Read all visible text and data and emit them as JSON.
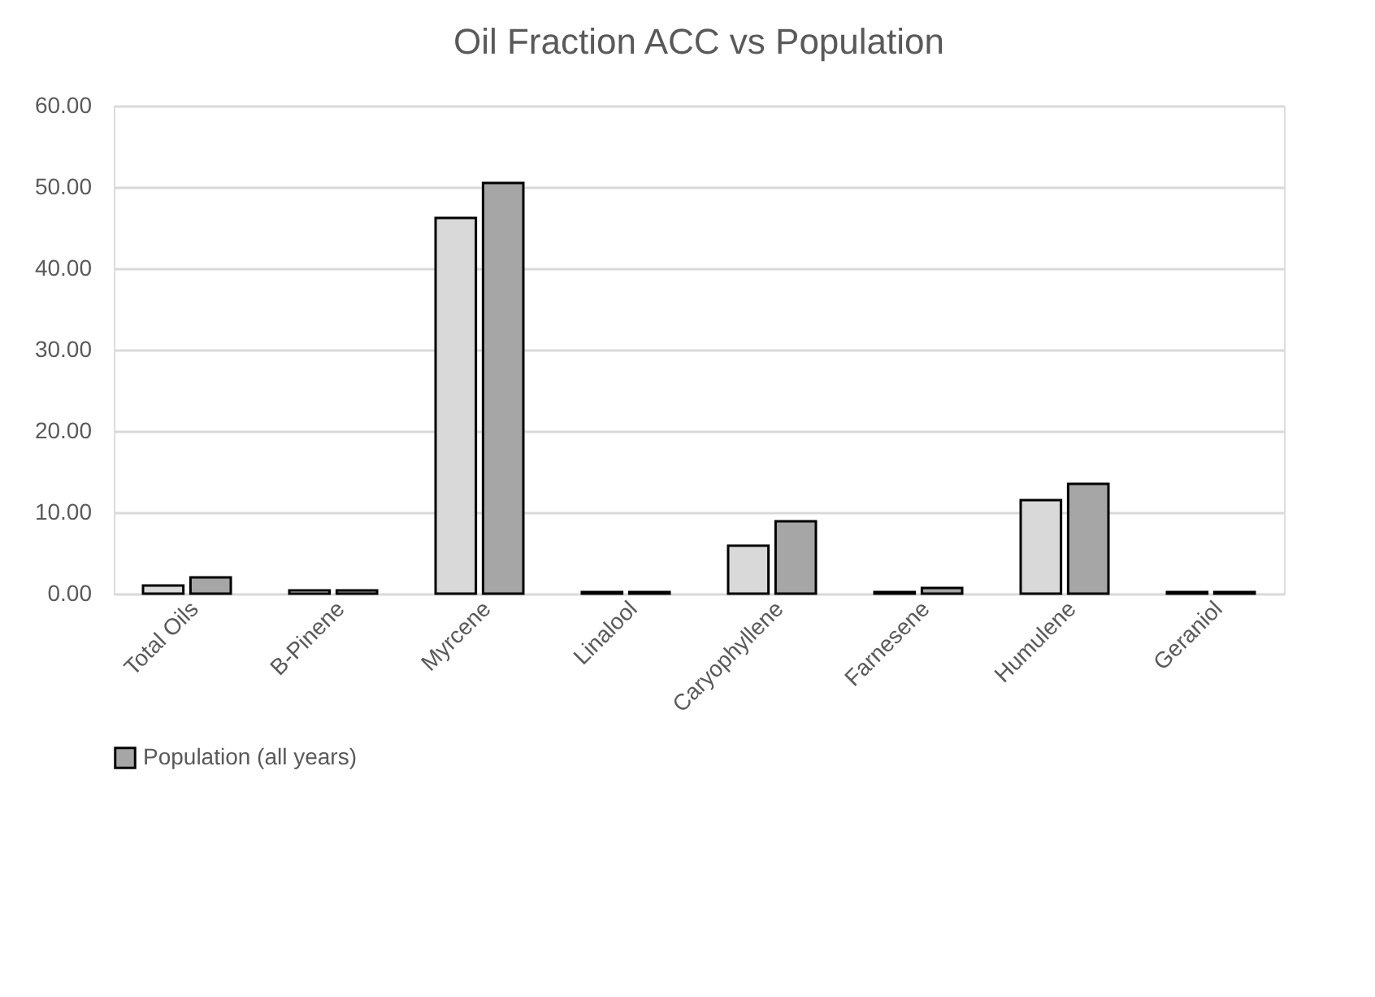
{
  "chart_data": {
    "type": "bar",
    "title": "Oil Fraction ACC vs Population",
    "categories": [
      "Total Oils",
      "B-Pinene",
      "Myrcene",
      "Linalool",
      "Caryophyllene",
      "Farnesene",
      "Humulene",
      "Geraniol"
    ],
    "series": [
      {
        "color": "#d9d9d9",
        "values": [
          1.0,
          0.4,
          46.2,
          0.2,
          5.9,
          0.2,
          11.5,
          0.2
        ]
      },
      {
        "name": "Population (all years)",
        "color": "#a6a6a6",
        "values": [
          2.0,
          0.4,
          50.5,
          0.2,
          8.9,
          0.7,
          13.5,
          0.2
        ]
      }
    ],
    "ylim": [
      0,
      60
    ],
    "yticks": [
      {
        "value": 0,
        "label": "0.00"
      },
      {
        "value": 10,
        "label": "10.00"
      },
      {
        "value": 20,
        "label": "20.00"
      },
      {
        "value": 30,
        "label": "30.00"
      },
      {
        "value": 40,
        "label": "40.00"
      },
      {
        "value": 50,
        "label": "50.00"
      },
      {
        "value": 60,
        "label": "60.00"
      }
    ],
    "grid": "y",
    "legend": "bottom"
  }
}
